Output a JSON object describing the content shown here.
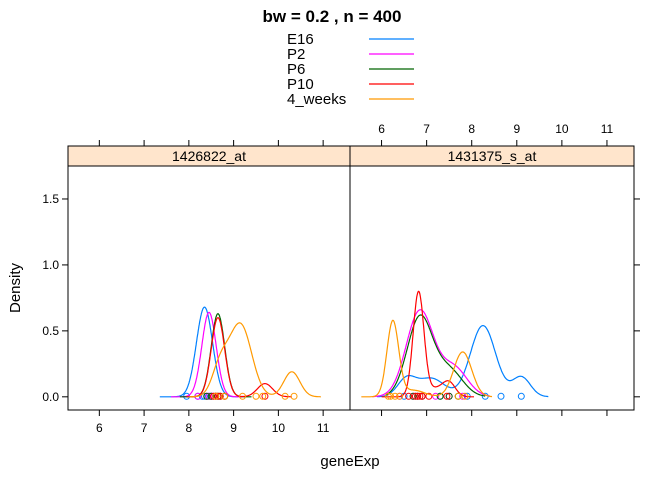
{
  "chart_data": {
    "type": "line",
    "title": "bw = 0.2 , n = 400",
    "xlabel": "geneExp",
    "ylabel": "Density",
    "xlim": [
      5.3,
      11.6
    ],
    "ylim": [
      -0.1,
      1.75
    ],
    "x_ticks": [
      6,
      7,
      8,
      9,
      10,
      11
    ],
    "y_ticks": [
      0.0,
      0.5,
      1.0,
      1.5
    ],
    "x_tick_labels": [
      "6",
      "7",
      "8",
      "9",
      "10",
      "11"
    ],
    "y_tick_labels": [
      "0.0",
      "0.5",
      "1.0",
      "1.5"
    ],
    "legend_position": "top-center",
    "legend": [
      {
        "name": "E16",
        "color": "#0080ff"
      },
      {
        "name": "P2",
        "color": "#ff00ff"
      },
      {
        "name": "P6",
        "color": "#006400"
      },
      {
        "name": "P10",
        "color": "#ff0000"
      },
      {
        "name": "4_weeks",
        "color": "#ff9900"
      }
    ],
    "panels": [
      {
        "strip": "1426822_at",
        "series": [
          {
            "name": "E16",
            "components": [
              [
                8.35,
                0.18,
                0.68
              ]
            ],
            "rug": [
              7.95,
              8.2,
              8.3,
              8.35,
              8.45,
              8.5
            ]
          },
          {
            "name": "P2",
            "components": [
              [
                8.45,
                0.16,
                0.64
              ]
            ],
            "rug": [
              8.2,
              8.4,
              8.45,
              8.5,
              8.55,
              8.6
            ]
          },
          {
            "name": "P6",
            "components": [
              [
                8.65,
                0.15,
                0.63
              ]
            ],
            "rug": [
              8.4,
              8.5,
              8.6,
              8.65,
              8.7,
              8.8
            ]
          },
          {
            "name": "P10",
            "components": [
              [
                8.65,
                0.15,
                0.6
              ],
              [
                9.7,
                0.17,
                0.1
              ]
            ],
            "rug": [
              8.55,
              8.6,
              8.65,
              8.7,
              8.8,
              9.7
            ]
          },
          {
            "name": "4_weeks",
            "components": [
              [
                8.7,
                0.18,
                0.22
              ],
              [
                9.15,
                0.25,
                0.55
              ],
              [
                10.3,
                0.18,
                0.19
              ]
            ],
            "rug": [
              8.6,
              8.8,
              9.2,
              9.5,
              9.65,
              10.15,
              10.35
            ]
          }
        ]
      },
      {
        "strip": "1431375_s_at",
        "series": [
          {
            "name": "E16",
            "components": [
              [
                6.55,
                0.2,
                0.13
              ],
              [
                7.1,
                0.3,
                0.14
              ],
              [
                8.25,
                0.28,
                0.54
              ],
              [
                9.1,
                0.2,
                0.15
              ]
            ],
            "rug": [
              6.5,
              6.75,
              7.3,
              7.9,
              8.3,
              8.65,
              9.1
            ]
          },
          {
            "name": "P2",
            "components": [
              [
                6.85,
                0.3,
                0.65
              ],
              [
                7.6,
                0.3,
                0.22
              ]
            ],
            "rug": [
              6.4,
              6.7,
              6.9,
              7.2,
              7.5,
              7.8
            ]
          },
          {
            "name": "P6",
            "components": [
              [
                6.85,
                0.28,
                0.6
              ],
              [
                7.5,
                0.3,
                0.2
              ]
            ],
            "rug": [
              6.7,
              6.8,
              6.9,
              7.3,
              7.5,
              7.7
            ]
          },
          {
            "name": "P10",
            "components": [
              [
                6.82,
                0.12,
                0.79
              ],
              [
                7.5,
                0.14,
                0.1
              ],
              [
                7.2,
                0.2,
                0.06
              ]
            ],
            "rug": [
              6.6,
              6.75,
              6.8,
              6.85,
              6.9,
              7.05,
              7.45
            ]
          },
          {
            "name": "4_weeks",
            "components": [
              [
                6.25,
                0.13,
                0.57
              ],
              [
                7.8,
                0.2,
                0.34
              ],
              [
                6.7,
                0.25,
                0.05
              ]
            ],
            "rug": [
              6.15,
              6.2,
              6.3,
              6.4,
              7.7,
              7.85
            ]
          }
        ]
      }
    ]
  }
}
